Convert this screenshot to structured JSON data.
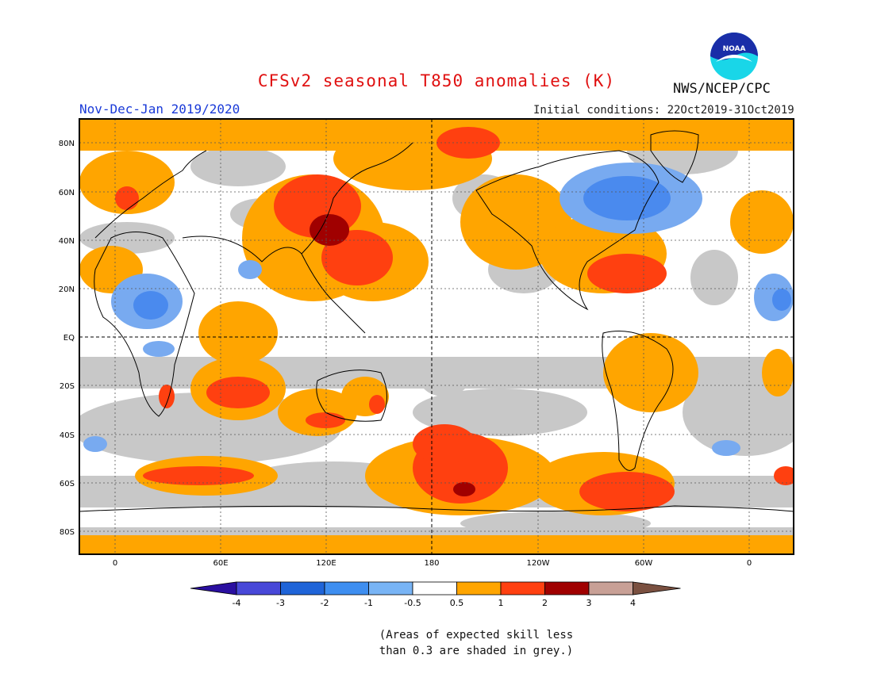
{
  "header": {
    "title": "CFSv2 seasonal T850 anomalies (K)",
    "period": "Nov-Dec-Jan 2019/2020",
    "initial_conditions": "Initial conditions: 22Oct2019-31Oct2019",
    "agency": "NWS/NCEP/CPC",
    "logo_text": "NOAA"
  },
  "map": {
    "lat_labels": [
      "80N",
      "60N",
      "40N",
      "20N",
      "EQ",
      "20S",
      "40S",
      "60S",
      "80S"
    ],
    "lon_labels": [
      "0",
      "60E",
      "120E",
      "180",
      "120W",
      "60W",
      "0"
    ],
    "colors": {
      "ocean_neutral": "#ffffff",
      "grey_low_skill": "#c8c8c8",
      "orange": "#ffa500",
      "red": "#ff4010",
      "dark_red": "#a00000",
      "light_blue": "#78aaf0",
      "blue": "#4a8aee",
      "coast": "#000000"
    }
  },
  "colorbar": {
    "labels": [
      "-4",
      "-3",
      "-2",
      "-1",
      "-0.5",
      "0.5",
      "1",
      "2",
      "3",
      "4"
    ],
    "colors": [
      "#2a0fa0",
      "#4848d8",
      "#1f64d8",
      "#3e8ef0",
      "#78b4f5",
      "#ffffff",
      "#ffa500",
      "#ff4010",
      "#a00000",
      "#c8a096",
      "#7a5040"
    ]
  },
  "note": {
    "line1": "(Areas of expected skill less",
    "line2": "than 0.3 are shaded in grey.)"
  }
}
